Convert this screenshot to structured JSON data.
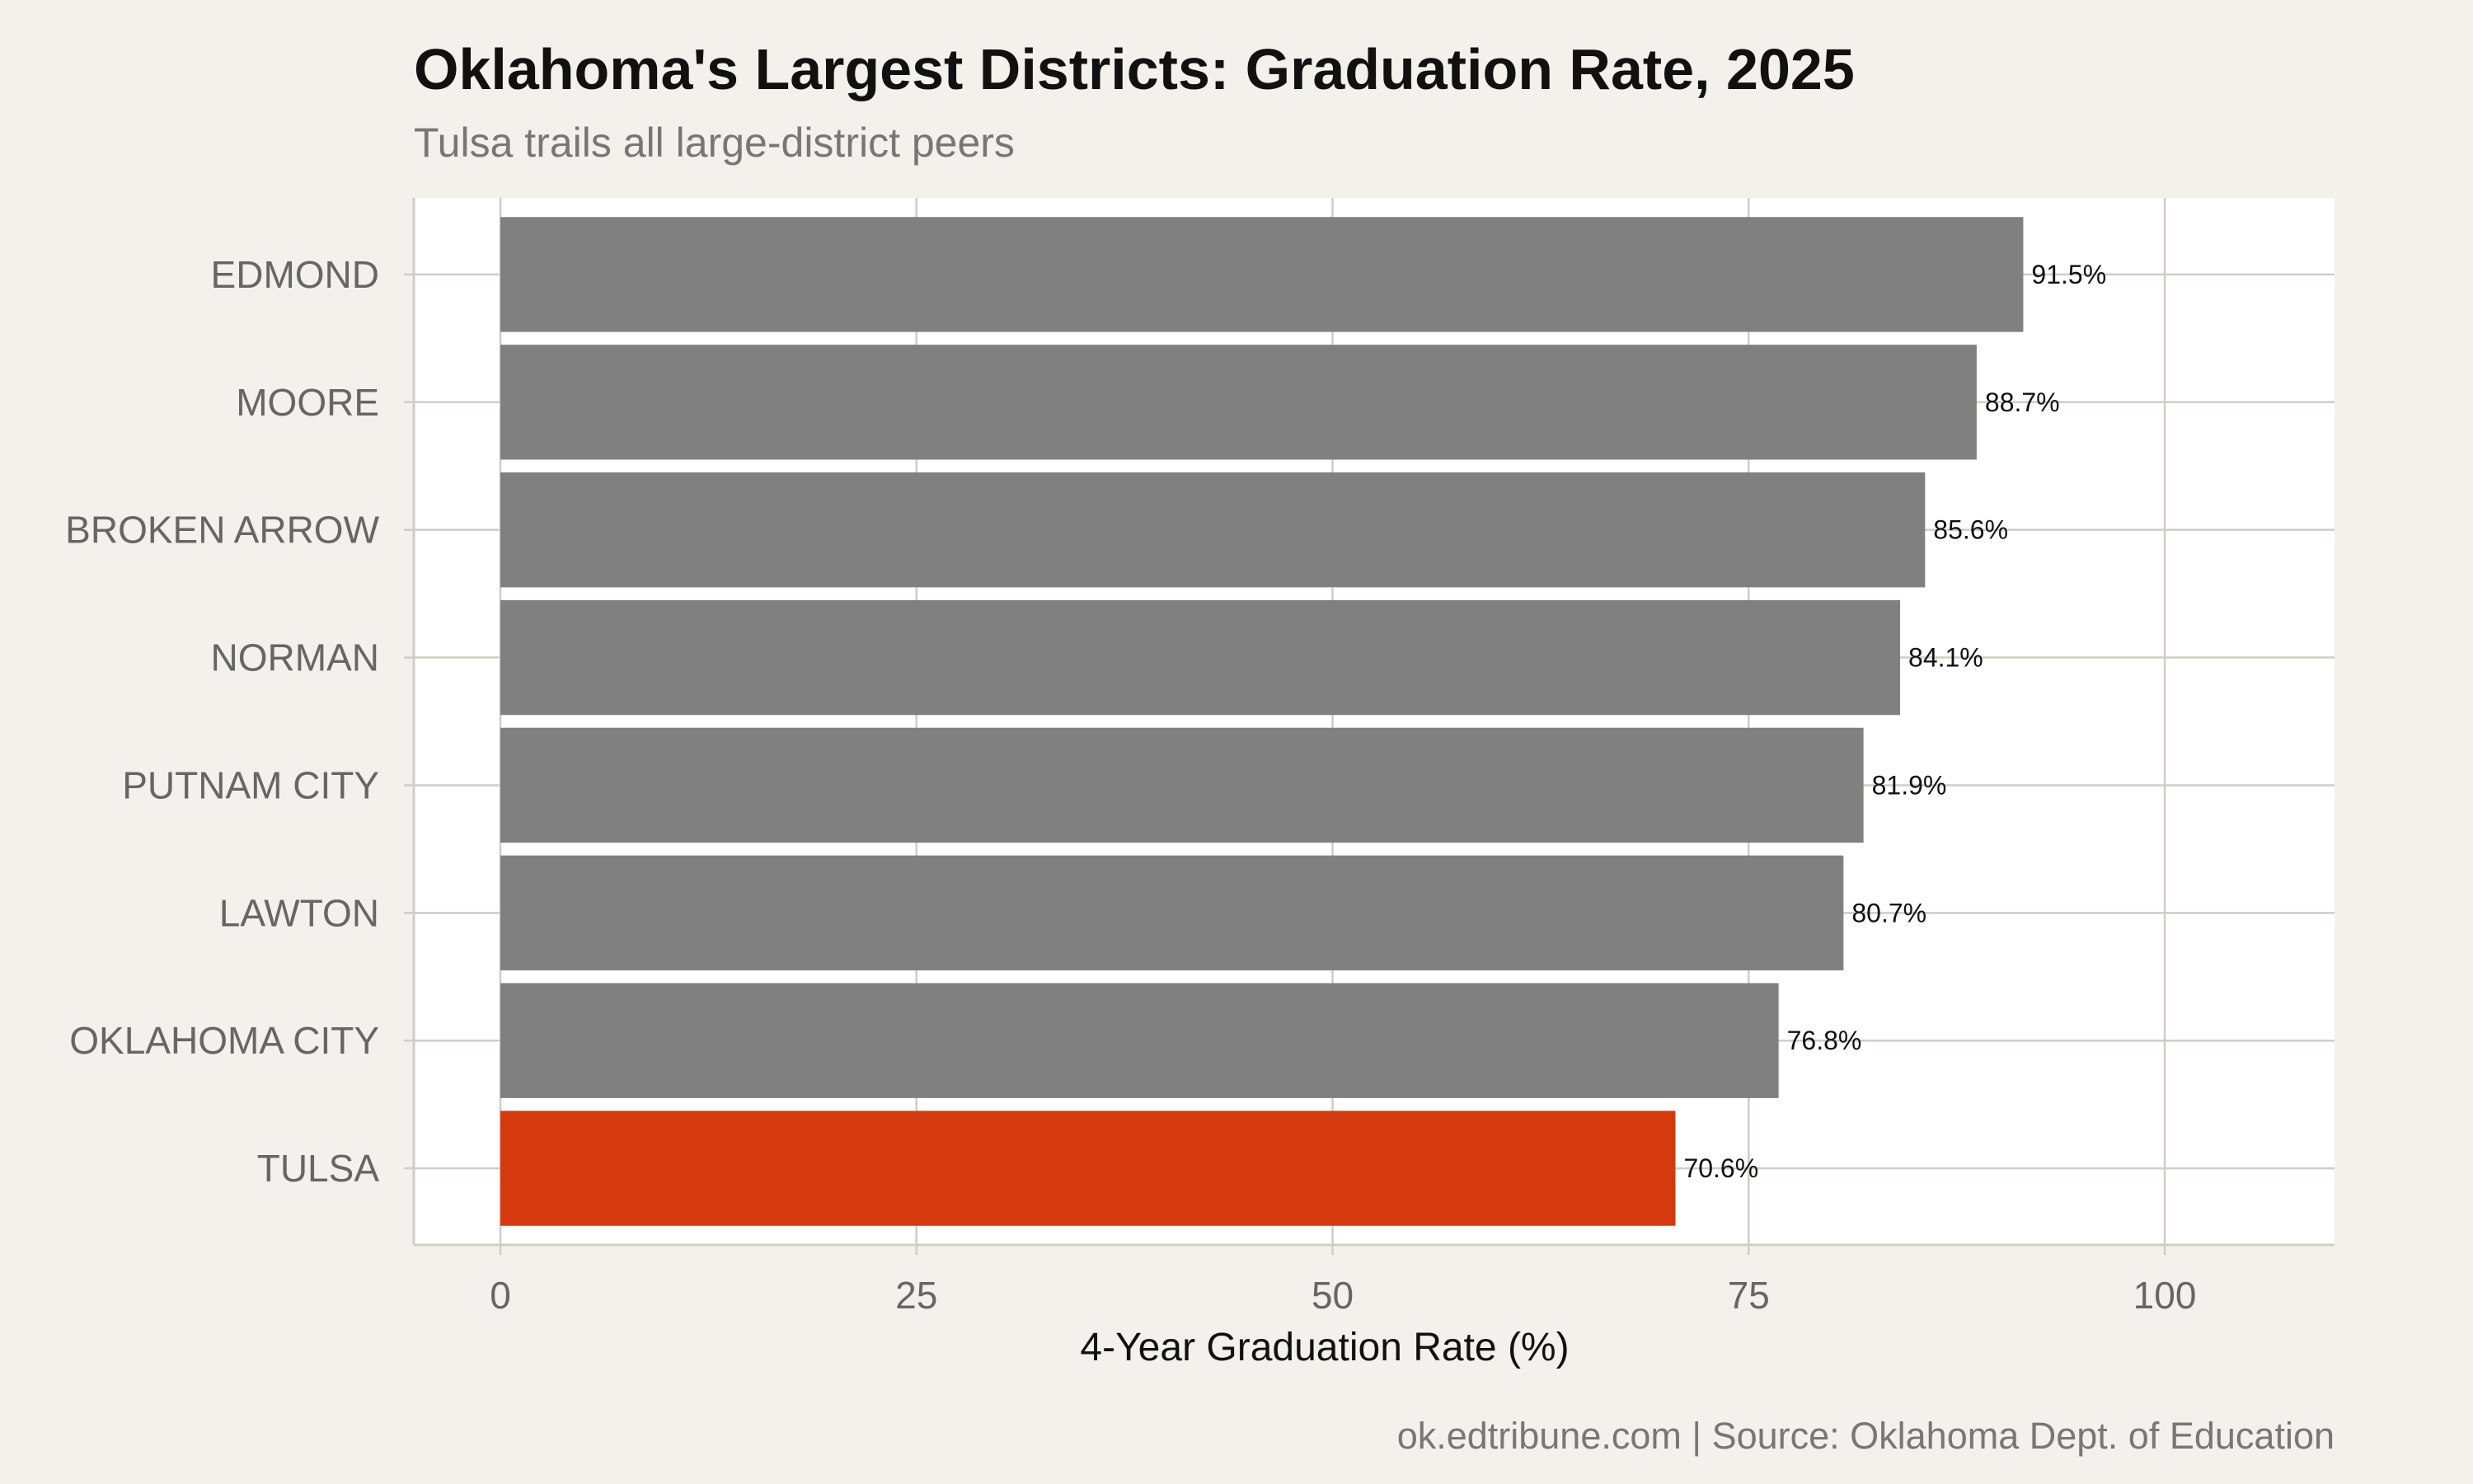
{
  "title": "Oklahoma's Largest Districts: Graduation Rate, 2025",
  "subtitle": "Tulsa trails all large-district peers",
  "caption": "ok.edtribune.com | Source: Oklahoma Dept. of Education",
  "colors": {
    "background": "#f4f1ec",
    "panel": "#ffffff",
    "bar_default": "#808080",
    "bar_highlight": "#d5390e",
    "grid": "#cfcdc6"
  },
  "chart_data": {
    "type": "bar",
    "orientation": "horizontal",
    "title": "Oklahoma's Largest Districts: Graduation Rate, 2025",
    "subtitle": "Tulsa trails all large-district peers",
    "xlabel": "4-Year Graduation Rate (%)",
    "ylabel": "",
    "categories": [
      "EDMOND",
      "MOORE",
      "BROKEN ARROW",
      "NORMAN",
      "PUTNAM CITY",
      "LAWTON",
      "OKLAHOMA CITY",
      "TULSA"
    ],
    "values": [
      91.5,
      88.7,
      85.6,
      84.1,
      81.9,
      80.7,
      76.8,
      70.6
    ],
    "value_labels": [
      "91.5%",
      "88.7%",
      "85.6%",
      "84.1%",
      "81.9%",
      "80.7%",
      "76.8%",
      "70.6%"
    ],
    "highlight": "TULSA",
    "xlim": [
      -5.2,
      110.2
    ],
    "xticks": [
      0,
      25,
      50,
      75,
      100
    ],
    "xtick_labels": [
      "0",
      "25",
      "50",
      "75",
      "100"
    ],
    "grid": true,
    "legend": "none"
  }
}
